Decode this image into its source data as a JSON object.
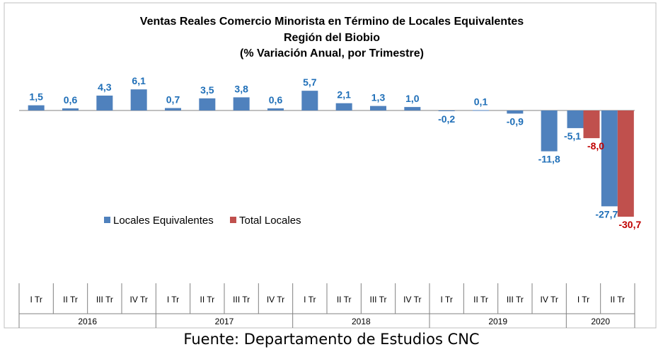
{
  "chart_data": {
    "type": "bar",
    "title": [
      "Ventas Reales Comercio Minorista  en Término de Locales Equivalentes",
      "Región del Biobio",
      "(% Variación Anual, por Trimestre)"
    ],
    "categories": [
      "I Tr",
      "II Tr",
      "III Tr",
      "IV Tr",
      "I Tr",
      "II Tr",
      "III Tr",
      "IV Tr",
      "I Tr",
      "II Tr",
      "III Tr",
      "IV Tr",
      "I Tr",
      "II Tr",
      "III Tr",
      "IV Tr",
      "I Tr",
      "II Tr"
    ],
    "groups": [
      {
        "label": "2016",
        "count": 4
      },
      {
        "label": "2017",
        "count": 4
      },
      {
        "label": "2018",
        "count": 4
      },
      {
        "label": "2019",
        "count": 4
      },
      {
        "label": "2020",
        "count": 2
      }
    ],
    "series": [
      {
        "name": "Locales Equivalentes",
        "color": "#4f81bd",
        "label_color": "#1f6fb8",
        "values": [
          1.5,
          0.6,
          4.3,
          6.1,
          0.7,
          3.5,
          3.8,
          0.6,
          5.7,
          2.1,
          1.3,
          1.0,
          -0.2,
          0.1,
          -0.9,
          -11.8,
          -5.1,
          -27.7
        ],
        "labels": [
          "1,5",
          "0,6",
          "4,3",
          "6,1",
          "0,7",
          "3,5",
          "3,8",
          "0,6",
          "5,7",
          "2,1",
          "1,3",
          "1,0",
          "-0,2",
          "0,1",
          "-0,9",
          "-11,8",
          "-5,1",
          "-27,7"
        ]
      },
      {
        "name": "Total Locales",
        "color": "#c0504d",
        "label_color": "#c00000",
        "values": [
          null,
          null,
          null,
          null,
          null,
          null,
          null,
          null,
          null,
          null,
          null,
          null,
          null,
          null,
          null,
          null,
          -8.0,
          -30.7
        ],
        "labels": [
          "",
          "",
          "",
          "",
          "",
          "",
          "",
          "",
          "",
          "",
          "",
          "",
          "",
          "",
          "",
          "",
          "-8,0",
          "-30,7"
        ]
      }
    ],
    "legend_position": "center-left",
    "grid": false
  },
  "source": "Fuente: Departamento de Estudios CNC"
}
